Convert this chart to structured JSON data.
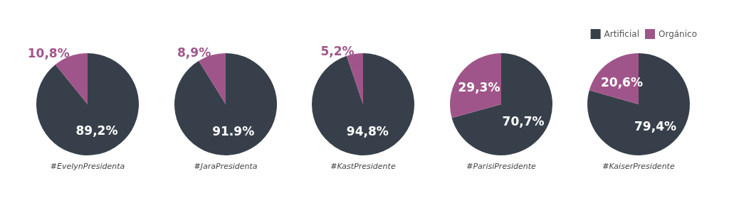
{
  "chart_data": [
    {
      "type": "pie",
      "xlabel": "#EvelynPresidenta",
      "categories": [
        null,
        null
      ],
      "values": [
        89.2,
        10.8
      ],
      "colors": [
        "#37404a",
        "#a0558a"
      ],
      "value_labels": [
        "89,2%",
        "10,8%"
      ],
      "legend": false
    },
    {
      "type": "pie",
      "xlabel": "#JaraPresidenta",
      "categories": [
        null,
        null
      ],
      "values": [
        91.9,
        8.9
      ],
      "colors": [
        "#37404a",
        "#a0558a"
      ],
      "value_labels": [
        "91.9%",
        "8,9%"
      ],
      "legend": false
    },
    {
      "type": "pie",
      "xlabel": "#KastPresidente",
      "categories": [
        null,
        null
      ],
      "values": [
        94.8,
        5.2
      ],
      "colors": [
        "#37404a",
        "#a0558a"
      ],
      "value_labels": [
        "94,8%",
        "5,2%"
      ],
      "legend": false
    },
    {
      "type": "pie",
      "xlabel": "#ParisiPresidente",
      "categories": [
        null,
        null
      ],
      "values": [
        70.7,
        29.3
      ],
      "colors": [
        "#37404a",
        "#a0558a"
      ],
      "value_labels": [
        "70,7%",
        "29,3%"
      ],
      "legend": false
    },
    {
      "type": "pie",
      "xlabel": "#KaiserPresidente",
      "categories": [
        "Artificial",
        "Orgánico"
      ],
      "values": [
        79.4,
        20.6
      ],
      "colors": [
        "#37404a",
        "#a0558a"
      ],
      "value_labels": [
        "79,4%",
        "20,6%"
      ],
      "legend": "top right"
    }
  ]
}
